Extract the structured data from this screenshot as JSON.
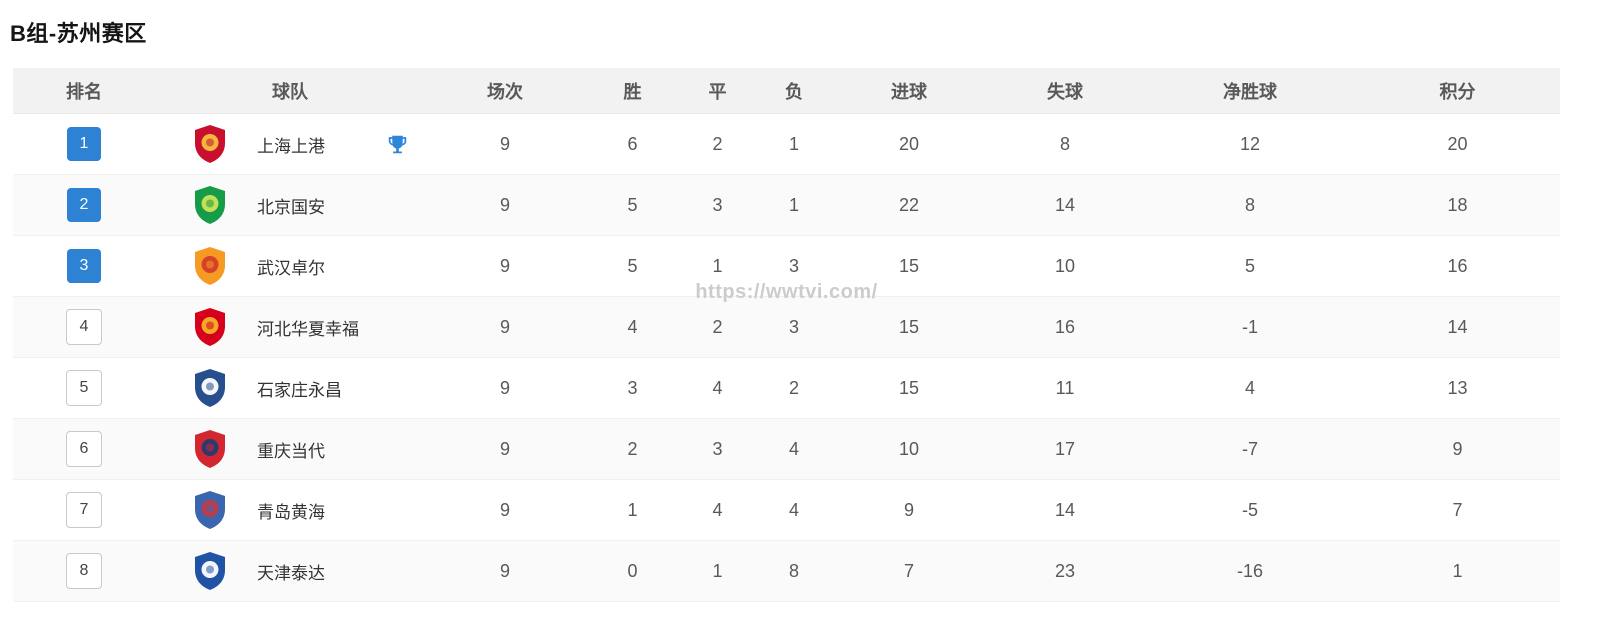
{
  "page": {
    "title": "B组-苏州赛区",
    "watermark": "https://wwtvi.com/"
  },
  "table": {
    "headers": {
      "rank": "排名",
      "team": "球队",
      "played": "场次",
      "won": "胜",
      "drawn": "平",
      "lost": "负",
      "goals_for": "进球",
      "goals_against": "失球",
      "goal_diff": "净胜球",
      "points": "积分"
    },
    "rows": [
      {
        "rank": "1",
        "team": "上海上港",
        "played": "9",
        "won": "6",
        "drawn": "2",
        "lost": "1",
        "goals_for": "20",
        "goals_against": "8",
        "goal_diff": "12",
        "points": "20",
        "highlighted_rank": true,
        "champion_trophy": true,
        "logo_colors": [
          "#c8102e",
          "#f5c142"
        ]
      },
      {
        "rank": "2",
        "team": "北京国安",
        "played": "9",
        "won": "5",
        "drawn": "3",
        "lost": "1",
        "goals_for": "22",
        "goals_against": "14",
        "goal_diff": "8",
        "points": "18",
        "highlighted_rank": true,
        "champion_trophy": false,
        "logo_colors": [
          "#169b48",
          "#cde35a"
        ]
      },
      {
        "rank": "3",
        "team": "武汉卓尔",
        "played": "9",
        "won": "5",
        "drawn": "1",
        "lost": "3",
        "goals_for": "15",
        "goals_against": "10",
        "goal_diff": "5",
        "points": "16",
        "highlighted_rank": true,
        "champion_trophy": false,
        "logo_colors": [
          "#f59a23",
          "#d43c2a"
        ]
      },
      {
        "rank": "4",
        "team": "河北华夏幸福",
        "played": "9",
        "won": "4",
        "drawn": "2",
        "lost": "3",
        "goals_for": "15",
        "goals_against": "16",
        "goal_diff": "-1",
        "points": "14",
        "highlighted_rank": false,
        "champion_trophy": false,
        "logo_colors": [
          "#d6001c",
          "#f3b229"
        ]
      },
      {
        "rank": "5",
        "team": "石家庄永昌",
        "played": "9",
        "won": "3",
        "drawn": "4",
        "lost": "2",
        "goals_for": "15",
        "goals_against": "11",
        "goal_diff": "4",
        "points": "13",
        "highlighted_rank": false,
        "champion_trophy": false,
        "logo_colors": [
          "#274f8d",
          "#ffffff"
        ]
      },
      {
        "rank": "6",
        "team": "重庆当代",
        "played": "9",
        "won": "2",
        "drawn": "3",
        "lost": "4",
        "goals_for": "10",
        "goals_against": "17",
        "goal_diff": "-7",
        "points": "9",
        "highlighted_rank": false,
        "champion_trophy": false,
        "logo_colors": [
          "#d22630",
          "#223a70"
        ]
      },
      {
        "rank": "7",
        "team": "青岛黄海",
        "played": "9",
        "won": "1",
        "drawn": "4",
        "lost": "4",
        "goals_for": "9",
        "goals_against": "14",
        "goal_diff": "-5",
        "points": "7",
        "highlighted_rank": false,
        "champion_trophy": false,
        "logo_colors": [
          "#3a66b0",
          "#c43a47"
        ]
      },
      {
        "rank": "8",
        "team": "天津泰达",
        "played": "9",
        "won": "0",
        "drawn": "1",
        "lost": "8",
        "goals_for": "7",
        "goals_against": "23",
        "goal_diff": "-16",
        "points": "1",
        "highlighted_rank": false,
        "champion_trophy": false,
        "logo_colors": [
          "#2053a4",
          "#ffffff"
        ]
      }
    ]
  },
  "colors": {
    "rank_badge_blue": "#2e82d4",
    "trophy_blue": "#2e86d8",
    "header_bg": "#f2f2f2",
    "row_alt_bg": "#fafafa",
    "watermark_gray": "#cccccc"
  }
}
